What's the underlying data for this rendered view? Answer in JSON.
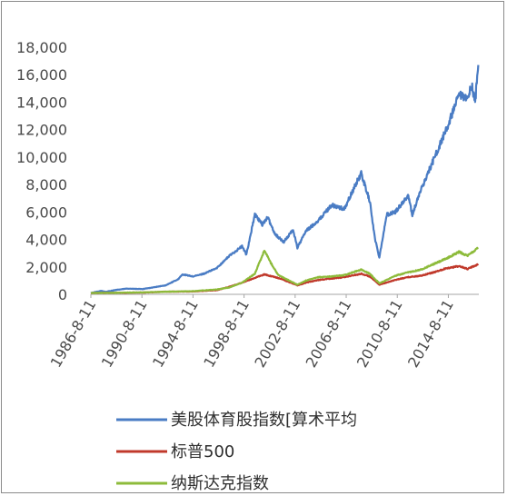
{
  "chart_data": {
    "type": "line",
    "title": "",
    "xlabel": "",
    "ylabel": "",
    "ylim": [
      0,
      18000
    ],
    "y_ticks": [
      0,
      2000,
      4000,
      6000,
      8000,
      10000,
      12000,
      14000,
      16000,
      18000
    ],
    "y_tick_labels": [
      "0",
      "2,000",
      "4,000",
      "6,000",
      "8,000",
      "10,000",
      "12,000",
      "14,000",
      "16,000",
      "18,000"
    ],
    "x_tick_labels": [
      "1986-8-11",
      "1990-8-11",
      "1994-8-11",
      "1998-8-11",
      "2002-8-11",
      "2006-8-11",
      "2010-8-11",
      "2014-8-11"
    ],
    "x_range": [
      "1986-08-11",
      "2016-12-31"
    ],
    "grid": false,
    "legend_position": "bottom",
    "series": [
      {
        "name": "美股体育股指数[算术平均",
        "color": "#4a7cc4",
        "points": [
          [
            "1986-08-11",
            100
          ],
          [
            "1987-06",
            250
          ],
          [
            "1987-10",
            180
          ],
          [
            "1988-06",
            300
          ],
          [
            "1989-06",
            420
          ],
          [
            "1990-08",
            380
          ],
          [
            "1991-06",
            500
          ],
          [
            "1992-06",
            650
          ],
          [
            "1993-06",
            1100
          ],
          [
            "1993-10",
            1450
          ],
          [
            "1994-08",
            1300
          ],
          [
            "1995-06",
            1500
          ],
          [
            "1996-06",
            1900
          ],
          [
            "1997-06",
            2800
          ],
          [
            "1998-06",
            3500
          ],
          [
            "1998-10",
            2900
          ],
          [
            "1999-06",
            5800
          ],
          [
            "2000-01",
            5100
          ],
          [
            "2000-06",
            5600
          ],
          [
            "2001-01",
            4400
          ],
          [
            "2001-09",
            3800
          ],
          [
            "2002-06",
            4700
          ],
          [
            "2002-10",
            3400
          ],
          [
            "2003-06",
            4600
          ],
          [
            "2004-06",
            5400
          ],
          [
            "2005-06",
            6500
          ],
          [
            "2006-06",
            6200
          ],
          [
            "2007-06",
            8200
          ],
          [
            "2007-10",
            8800
          ],
          [
            "2008-06",
            6800
          ],
          [
            "2008-11",
            4000
          ],
          [
            "2009-03",
            2700
          ],
          [
            "2009-10",
            5800
          ],
          [
            "2010-06",
            6000
          ],
          [
            "2011-06",
            7200
          ],
          [
            "2011-10",
            5800
          ],
          [
            "2012-06",
            7600
          ],
          [
            "2013-06",
            9800
          ],
          [
            "2014-06",
            12000
          ],
          [
            "2015-06",
            14500
          ],
          [
            "2016-01",
            14200
          ],
          [
            "2016-06",
            15200
          ],
          [
            "2016-09",
            14000
          ],
          [
            "2016-12",
            16700
          ]
        ]
      },
      {
        "name": "标普500",
        "color": "#c0392b",
        "points": [
          [
            "1986-08-11",
            100
          ],
          [
            "1988-06",
            105
          ],
          [
            "1990-08",
            130
          ],
          [
            "1992-06",
            190
          ],
          [
            "1994-08",
            210
          ],
          [
            "1996-06",
            300
          ],
          [
            "1997-06",
            550
          ],
          [
            "1998-06",
            850
          ],
          [
            "1999-06",
            1200
          ],
          [
            "2000-03",
            1450
          ],
          [
            "2001-06",
            1150
          ],
          [
            "2002-10",
            650
          ],
          [
            "2003-06",
            850
          ],
          [
            "2004-06",
            1050
          ],
          [
            "2005-06",
            1150
          ],
          [
            "2006-06",
            1250
          ],
          [
            "2007-10",
            1500
          ],
          [
            "2008-06",
            1300
          ],
          [
            "2009-03",
            700
          ],
          [
            "2010-06",
            1050
          ],
          [
            "2011-06",
            1250
          ],
          [
            "2012-06",
            1350
          ],
          [
            "2013-06",
            1600
          ],
          [
            "2014-06",
            1900
          ],
          [
            "2015-06",
            2050
          ],
          [
            "2016-02",
            1850
          ],
          [
            "2016-12",
            2200
          ]
        ]
      },
      {
        "name": "纳斯达克指数",
        "color": "#8dbb3b",
        "points": [
          [
            "1986-08-11",
            100
          ],
          [
            "1988-06",
            110
          ],
          [
            "1990-08",
            140
          ],
          [
            "1992-06",
            190
          ],
          [
            "1994-08",
            230
          ],
          [
            "1996-06",
            350
          ],
          [
            "1997-06",
            500
          ],
          [
            "1998-06",
            850
          ],
          [
            "1999-06",
            1500
          ],
          [
            "2000-03",
            3200
          ],
          [
            "2000-09",
            2300
          ],
          [
            "2001-04",
            1400
          ],
          [
            "2002-10",
            700
          ],
          [
            "2003-06",
            1000
          ],
          [
            "2004-06",
            1250
          ],
          [
            "2005-06",
            1300
          ],
          [
            "2006-06",
            1400
          ],
          [
            "2007-10",
            1800
          ],
          [
            "2008-06",
            1500
          ],
          [
            "2009-03",
            800
          ],
          [
            "2010-06",
            1350
          ],
          [
            "2011-06",
            1600
          ],
          [
            "2012-06",
            1800
          ],
          [
            "2013-06",
            2200
          ],
          [
            "2014-06",
            2600
          ],
          [
            "2015-06",
            3100
          ],
          [
            "2016-02",
            2800
          ],
          [
            "2016-12",
            3400
          ]
        ]
      }
    ]
  }
}
